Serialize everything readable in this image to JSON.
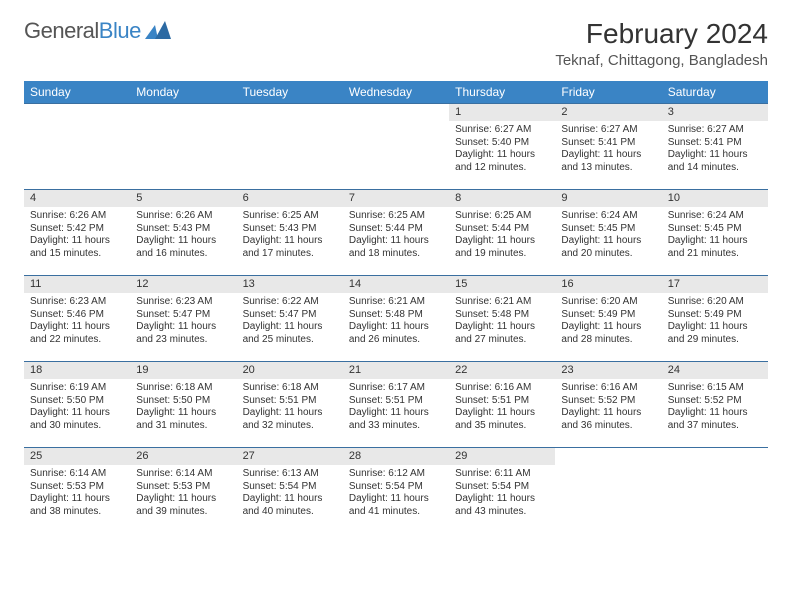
{
  "branding": {
    "logo_text_1": "General",
    "logo_text_2": "Blue",
    "logo_text_color_1": "#666666",
    "logo_text_color_2": "#3a84c5",
    "logo_mark_color": "#3a84c5"
  },
  "header": {
    "title": "February 2024",
    "subtitle": "Teknaf, Chittagong, Bangladesh",
    "title_fontsize": 28,
    "subtitle_fontsize": 15
  },
  "colors": {
    "header_bar": "#3a84c5",
    "row_divider": "#3a6fa0",
    "date_bg": "#e8e8e8",
    "page_bg": "#ffffff",
    "text": "#333333"
  },
  "days_of_week": [
    "Sunday",
    "Monday",
    "Tuesday",
    "Wednesday",
    "Thursday",
    "Friday",
    "Saturday"
  ],
  "layout": {
    "first_weekday_index": 4,
    "weeks": 5,
    "cell_fontsize": 10,
    "dow_fontsize": 12
  },
  "days": [
    {
      "n": 1,
      "sunrise": "6:27 AM",
      "sunset": "5:40 PM",
      "daylight": "11 hours and 12 minutes."
    },
    {
      "n": 2,
      "sunrise": "6:27 AM",
      "sunset": "5:41 PM",
      "daylight": "11 hours and 13 minutes."
    },
    {
      "n": 3,
      "sunrise": "6:27 AM",
      "sunset": "5:41 PM",
      "daylight": "11 hours and 14 minutes."
    },
    {
      "n": 4,
      "sunrise": "6:26 AM",
      "sunset": "5:42 PM",
      "daylight": "11 hours and 15 minutes."
    },
    {
      "n": 5,
      "sunrise": "6:26 AM",
      "sunset": "5:43 PM",
      "daylight": "11 hours and 16 minutes."
    },
    {
      "n": 6,
      "sunrise": "6:25 AM",
      "sunset": "5:43 PM",
      "daylight": "11 hours and 17 minutes."
    },
    {
      "n": 7,
      "sunrise": "6:25 AM",
      "sunset": "5:44 PM",
      "daylight": "11 hours and 18 minutes."
    },
    {
      "n": 8,
      "sunrise": "6:25 AM",
      "sunset": "5:44 PM",
      "daylight": "11 hours and 19 minutes."
    },
    {
      "n": 9,
      "sunrise": "6:24 AM",
      "sunset": "5:45 PM",
      "daylight": "11 hours and 20 minutes."
    },
    {
      "n": 10,
      "sunrise": "6:24 AM",
      "sunset": "5:45 PM",
      "daylight": "11 hours and 21 minutes."
    },
    {
      "n": 11,
      "sunrise": "6:23 AM",
      "sunset": "5:46 PM",
      "daylight": "11 hours and 22 minutes."
    },
    {
      "n": 12,
      "sunrise": "6:23 AM",
      "sunset": "5:47 PM",
      "daylight": "11 hours and 23 minutes."
    },
    {
      "n": 13,
      "sunrise": "6:22 AM",
      "sunset": "5:47 PM",
      "daylight": "11 hours and 25 minutes."
    },
    {
      "n": 14,
      "sunrise": "6:21 AM",
      "sunset": "5:48 PM",
      "daylight": "11 hours and 26 minutes."
    },
    {
      "n": 15,
      "sunrise": "6:21 AM",
      "sunset": "5:48 PM",
      "daylight": "11 hours and 27 minutes."
    },
    {
      "n": 16,
      "sunrise": "6:20 AM",
      "sunset": "5:49 PM",
      "daylight": "11 hours and 28 minutes."
    },
    {
      "n": 17,
      "sunrise": "6:20 AM",
      "sunset": "5:49 PM",
      "daylight": "11 hours and 29 minutes."
    },
    {
      "n": 18,
      "sunrise": "6:19 AM",
      "sunset": "5:50 PM",
      "daylight": "11 hours and 30 minutes."
    },
    {
      "n": 19,
      "sunrise": "6:18 AM",
      "sunset": "5:50 PM",
      "daylight": "11 hours and 31 minutes."
    },
    {
      "n": 20,
      "sunrise": "6:18 AM",
      "sunset": "5:51 PM",
      "daylight": "11 hours and 32 minutes."
    },
    {
      "n": 21,
      "sunrise": "6:17 AM",
      "sunset": "5:51 PM",
      "daylight": "11 hours and 33 minutes."
    },
    {
      "n": 22,
      "sunrise": "6:16 AM",
      "sunset": "5:51 PM",
      "daylight": "11 hours and 35 minutes."
    },
    {
      "n": 23,
      "sunrise": "6:16 AM",
      "sunset": "5:52 PM",
      "daylight": "11 hours and 36 minutes."
    },
    {
      "n": 24,
      "sunrise": "6:15 AM",
      "sunset": "5:52 PM",
      "daylight": "11 hours and 37 minutes."
    },
    {
      "n": 25,
      "sunrise": "6:14 AM",
      "sunset": "5:53 PM",
      "daylight": "11 hours and 38 minutes."
    },
    {
      "n": 26,
      "sunrise": "6:14 AM",
      "sunset": "5:53 PM",
      "daylight": "11 hours and 39 minutes."
    },
    {
      "n": 27,
      "sunrise": "6:13 AM",
      "sunset": "5:54 PM",
      "daylight": "11 hours and 40 minutes."
    },
    {
      "n": 28,
      "sunrise": "6:12 AM",
      "sunset": "5:54 PM",
      "daylight": "11 hours and 41 minutes."
    },
    {
      "n": 29,
      "sunrise": "6:11 AM",
      "sunset": "5:54 PM",
      "daylight": "11 hours and 43 minutes."
    }
  ],
  "labels": {
    "sunrise": "Sunrise:",
    "sunset": "Sunset:",
    "daylight": "Daylight:"
  }
}
